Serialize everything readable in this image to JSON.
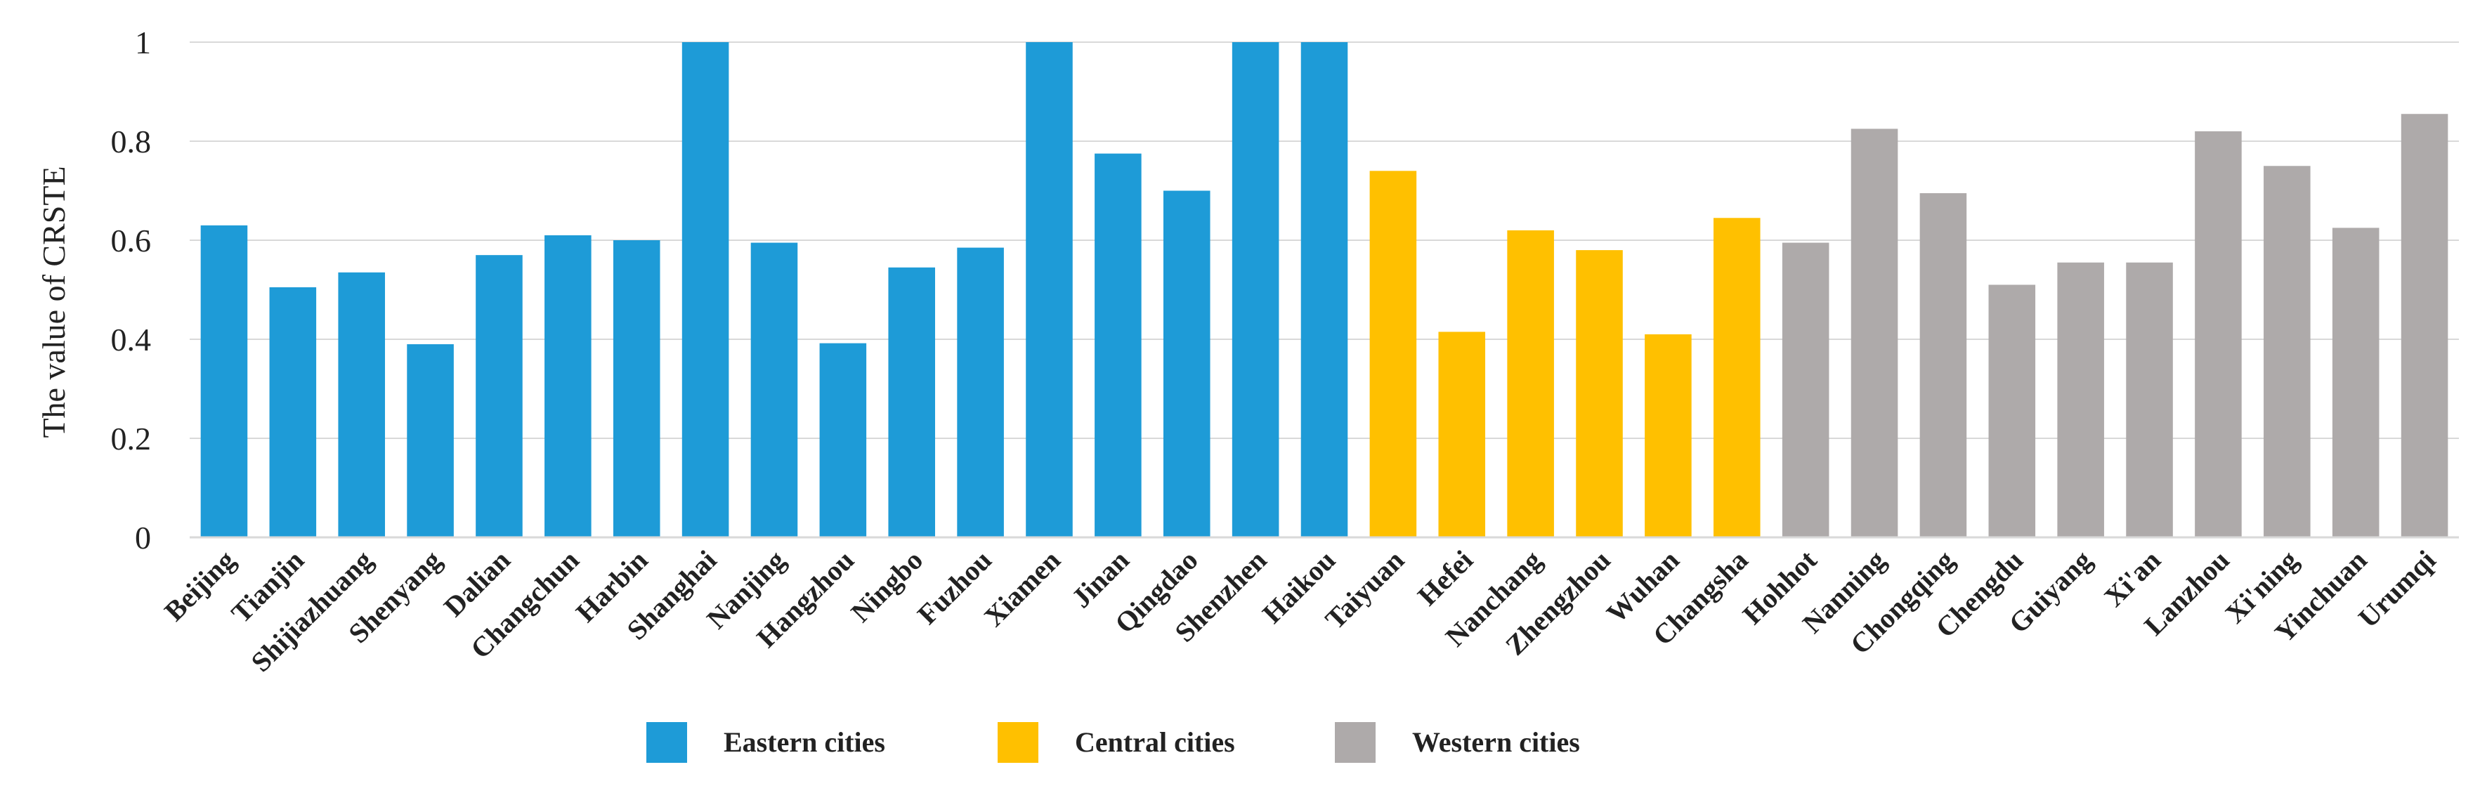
{
  "chart_data": {
    "type": "bar",
    "title": "",
    "xlabel": "",
    "ylabel": "The value of CRSTE",
    "ylim": [
      0,
      1
    ],
    "yticks": [
      "0",
      "0.2",
      "0.4",
      "0.6",
      "0.8",
      "1"
    ],
    "yticks_values": [
      0,
      0.2,
      0.4,
      0.6,
      0.8,
      1
    ],
    "grid": true,
    "legend_position": "bottom",
    "categories": [
      "Beijing",
      "Tianjin",
      "Shijiazhuang",
      "Shenyang",
      "Dalian",
      "Changchun",
      "Harbin",
      "Shanghai",
      "Nanjing",
      "Hangzhou",
      "Ningbo",
      "Fuzhou",
      "Xiamen",
      "Jinan",
      "Qingdao",
      "Shenzhen",
      "Haikou",
      "Taiyuan",
      "Hefei",
      "Nanchang",
      "Zhengzhou",
      "Wuhan",
      "Changsha",
      "Hohhot",
      "Nanning",
      "Chongqing",
      "Chengdu",
      "Guiyang",
      "Xi'an",
      "Lanzhou",
      "Xi'ning",
      "Yinchuan",
      "Urumqi"
    ],
    "values": [
      0.63,
      0.505,
      0.535,
      0.39,
      0.57,
      0.61,
      0.6,
      1.0,
      0.595,
      0.392,
      0.545,
      0.585,
      1.0,
      0.775,
      0.7,
      1.0,
      1.0,
      0.74,
      0.415,
      0.62,
      0.58,
      0.41,
      0.645,
      0.595,
      0.825,
      0.695,
      0.51,
      0.555,
      0.555,
      0.82,
      0.75,
      0.625,
      0.855
    ],
    "groups": [
      "Eastern",
      "Eastern",
      "Eastern",
      "Eastern",
      "Eastern",
      "Eastern",
      "Eastern",
      "Eastern",
      "Eastern",
      "Eastern",
      "Eastern",
      "Eastern",
      "Eastern",
      "Eastern",
      "Eastern",
      "Eastern",
      "Eastern",
      "Central",
      "Central",
      "Central",
      "Central",
      "Central",
      "Central",
      "Western",
      "Western",
      "Western",
      "Western",
      "Western",
      "Western",
      "Western",
      "Western",
      "Western",
      "Western"
    ],
    "legend": [
      {
        "group": "Eastern",
        "label": "Eastern cities",
        "color": "#1e9bd7"
      },
      {
        "group": "Central",
        "label": "Central cities",
        "color": "#ffc000"
      },
      {
        "group": "Western",
        "label": "Western cities",
        "color": "#aeaaaa"
      }
    ]
  }
}
